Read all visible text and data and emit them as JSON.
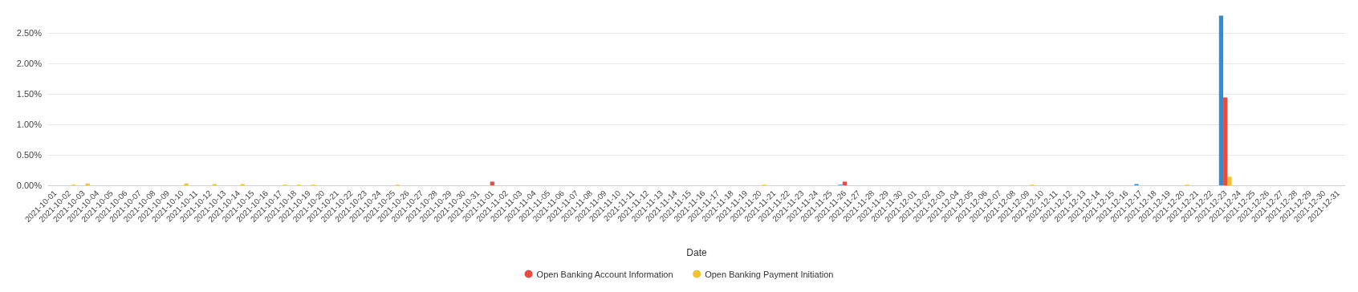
{
  "chart_data": {
    "type": "bar",
    "xlabel": "Date",
    "legend": "bottom",
    "grid": "y",
    "ylim": [
      0,
      2.8
    ],
    "yticks": [
      {
        "value": 0,
        "label": "0.00%"
      },
      {
        "value": 0.5,
        "label": "0.50%"
      },
      {
        "value": 1,
        "label": "1.00%"
      },
      {
        "value": 1.5,
        "label": "1.50%"
      },
      {
        "value": 2,
        "label": "2.00%"
      },
      {
        "value": 2.5,
        "label": "2.50%"
      }
    ],
    "categories": [
      "2021-10-01",
      "2021-10-02",
      "2021-10-03",
      "2021-10-04",
      "2021-10-05",
      "2021-10-06",
      "2021-10-07",
      "2021-10-08",
      "2021-10-09",
      "2021-10-10",
      "2021-10-11",
      "2021-10-12",
      "2021-10-13",
      "2021-10-14",
      "2021-10-15",
      "2021-10-16",
      "2021-10-17",
      "2021-10-18",
      "2021-10-19",
      "2021-10-20",
      "2021-10-21",
      "2021-10-22",
      "2021-10-23",
      "2021-10-24",
      "2021-10-25",
      "2021-10-26",
      "2021-10-27",
      "2021-10-28",
      "2021-10-29",
      "2021-10-30",
      "2021-10-31",
      "2021-11-01",
      "2021-11-02",
      "2021-11-03",
      "2021-11-04",
      "2021-11-05",
      "2021-11-06",
      "2021-11-07",
      "2021-11-08",
      "2021-11-09",
      "2021-11-10",
      "2021-11-11",
      "2021-11-12",
      "2021-11-13",
      "2021-11-14",
      "2021-11-15",
      "2021-11-16",
      "2021-11-17",
      "2021-11-18",
      "2021-11-19",
      "2021-11-20",
      "2021-11-21",
      "2021-11-22",
      "2021-11-23",
      "2021-11-24",
      "2021-11-25",
      "2021-11-26",
      "2021-11-27",
      "2021-11-28",
      "2021-11-29",
      "2021-11-30",
      "2021-12-01",
      "2021-12-02",
      "2021-12-03",
      "2021-12-04",
      "2021-12-05",
      "2021-12-06",
      "2021-12-07",
      "2021-12-08",
      "2021-12-09",
      "2021-12-10",
      "2021-12-11",
      "2021-12-12",
      "2021-12-13",
      "2021-12-14",
      "2021-12-15",
      "2021-12-16",
      "2021-12-17",
      "2021-12-18",
      "2021-12-19",
      "2021-12-20",
      "2021-12-21",
      "2021-12-22",
      "2021-12-23",
      "2021-12-24",
      "2021-12-25",
      "2021-12-26",
      "2021-12-27",
      "2021-12-28",
      "2021-12-29",
      "2021-12-30",
      "2021-12-31"
    ],
    "series": [
      {
        "color": "#2e8fd6",
        "values": [
          0,
          0,
          0,
          0,
          0,
          0,
          0,
          0,
          0,
          0,
          0,
          0,
          0,
          0,
          0,
          0,
          0,
          0,
          0,
          0,
          0,
          0,
          0,
          0,
          0,
          0,
          0,
          0,
          0,
          0,
          0,
          0,
          0,
          0,
          0,
          0,
          0,
          0,
          0,
          0,
          0,
          0,
          0,
          0,
          0,
          0,
          0,
          0,
          0,
          0,
          0,
          0,
          0,
          0,
          0,
          0,
          0.01,
          0,
          0,
          0,
          0,
          0,
          0,
          0,
          0,
          0,
          0,
          0,
          0,
          0,
          0,
          0,
          0,
          0,
          0,
          0,
          0,
          0.02,
          0,
          0,
          0,
          0,
          0,
          2.78,
          0,
          0,
          0,
          0,
          0,
          0,
          0,
          0
        ]
      },
      {
        "name": "Open Banking Account Information",
        "color": "#e84c3d",
        "values": [
          0,
          0,
          0,
          0,
          0,
          0,
          0,
          0,
          0,
          0,
          0,
          0,
          0,
          0,
          0,
          0,
          0,
          0,
          0,
          0,
          0,
          0,
          0,
          0,
          0,
          0,
          0,
          0,
          0,
          0,
          0,
          0.06,
          0,
          0,
          0,
          0,
          0,
          0,
          0,
          0,
          0,
          0,
          0,
          0,
          0,
          0,
          0,
          0,
          0,
          0,
          0,
          0,
          0,
          0,
          0,
          0,
          0.06,
          0,
          0,
          0,
          0,
          0,
          0,
          0,
          0,
          0,
          0,
          0,
          0,
          0,
          0,
          0,
          0,
          0,
          0,
          0,
          0,
          0,
          0,
          0,
          0,
          0,
          0,
          1.44,
          0,
          0,
          0,
          0,
          0,
          0,
          0,
          0
        ]
      },
      {
        "name": "Open Banking Payment Initiation",
        "color": "#f2c12e",
        "values": [
          0,
          0.01,
          0.03,
          0,
          0,
          0,
          0,
          0,
          0,
          0.03,
          0,
          0.02,
          0,
          0.02,
          0,
          0,
          0.01,
          0.01,
          0.01,
          0,
          0,
          0,
          0,
          0,
          0.01,
          0,
          0,
          0,
          0,
          0,
          0,
          0,
          0,
          0,
          0,
          0,
          0,
          0,
          0,
          0,
          0,
          0,
          0,
          0,
          0,
          0,
          0,
          0,
          0,
          0,
          0.01,
          0,
          0,
          0,
          0,
          0,
          0,
          0,
          0,
          0,
          0,
          0,
          0,
          0,
          0,
          0,
          0,
          0,
          0,
          0.01,
          0,
          0,
          0,
          0,
          0,
          0,
          0,
          0,
          0,
          0,
          0.01,
          0,
          0,
          0.14,
          0,
          0,
          0,
          0,
          0,
          0,
          0,
          0
        ]
      }
    ]
  }
}
